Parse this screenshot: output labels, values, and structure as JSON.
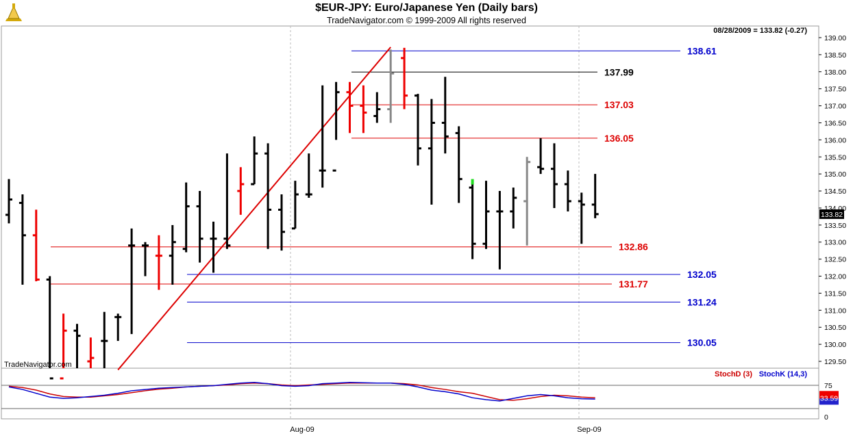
{
  "header": {
    "title": "$EUR-JPY:  Euro/Japanese Yen  (Daily bars)",
    "subtitle": "TradeNavigator.com © 1999-2009 All rights reserved",
    "last_quote": "08/28/2009 = 133.82 (-0.27)",
    "watermark": "TradeNavigator.com"
  },
  "chart_data": [
    {
      "type": "ohlc",
      "price_axis": {
        "ticks": [
          "139.00",
          "138.50",
          "138.00",
          "137.50",
          "137.00",
          "136.50",
          "136.00",
          "135.50",
          "135.00",
          "134.50",
          "134.00",
          "133.50",
          "133.00",
          "132.50",
          "132.00",
          "131.50",
          "131.00",
          "130.50",
          "130.00",
          "129.50"
        ],
        "range": [
          129.2,
          139.3
        ]
      },
      "x_axis": {
        "ticks": [
          "Aug-09",
          "Sep-09"
        ]
      },
      "current_price_label": "133.82",
      "bars": [
        {
          "o": 133.8,
          "h": 134.85,
          "l": 133.55,
          "c": 134.25,
          "color": "black"
        },
        {
          "o": 134.15,
          "h": 134.4,
          "l": 131.75,
          "c": 133.2,
          "color": "black"
        },
        {
          "o": 133.2,
          "h": 133.95,
          "l": 131.85,
          "c": 131.9,
          "color": "red"
        },
        {
          "o": 131.9,
          "h": 132.0,
          "l": 128.0,
          "c": 129.0,
          "color": "black"
        },
        {
          "o": 129.0,
          "h": 130.9,
          "l": 128.5,
          "c": 130.4,
          "color": "red"
        },
        {
          "o": 130.4,
          "h": 130.6,
          "l": 128.8,
          "c": 130.25,
          "color": "black"
        },
        {
          "o": 129.5,
          "h": 130.2,
          "l": 128.9,
          "c": 129.6,
          "color": "red"
        },
        {
          "o": 130.1,
          "h": 130.95,
          "l": 129.3,
          "c": 130.1,
          "color": "black"
        },
        {
          "o": 130.8,
          "h": 130.9,
          "l": 130.1,
          "c": 130.8,
          "color": "black"
        },
        {
          "o": 132.9,
          "h": 133.4,
          "l": 130.3,
          "c": 132.9,
          "color": "black"
        },
        {
          "o": 132.9,
          "h": 133.0,
          "l": 132.0,
          "c": 132.9,
          "color": "black"
        },
        {
          "o": 132.6,
          "h": 133.2,
          "l": 131.6,
          "c": 132.6,
          "color": "red"
        },
        {
          "o": 132.6,
          "h": 133.5,
          "l": 131.75,
          "c": 133.0,
          "color": "black"
        },
        {
          "o": 132.8,
          "h": 134.75,
          "l": 132.7,
          "c": 134.05,
          "color": "black"
        },
        {
          "o": 134.05,
          "h": 134.5,
          "l": 132.4,
          "c": 133.1,
          "color": "black"
        },
        {
          "o": 133.1,
          "h": 133.6,
          "l": 132.1,
          "c": 133.1,
          "color": "black"
        },
        {
          "o": 133.1,
          "h": 135.6,
          "l": 132.8,
          "c": 132.9,
          "color": "black"
        },
        {
          "o": 134.5,
          "h": 135.2,
          "l": 133.8,
          "c": 134.7,
          "color": "red"
        },
        {
          "o": 134.7,
          "h": 136.1,
          "l": 134.7,
          "c": 135.6,
          "color": "black"
        },
        {
          "o": 135.6,
          "h": 135.9,
          "l": 132.8,
          "c": 133.95,
          "color": "black"
        },
        {
          "o": 133.95,
          "h": 134.4,
          "l": 132.75,
          "c": 133.3,
          "color": "black"
        },
        {
          "o": 133.4,
          "h": 134.8,
          "l": 133.4,
          "c": 134.4,
          "color": "black"
        },
        {
          "o": 134.4,
          "h": 135.6,
          "l": 134.3,
          "c": 134.4,
          "color": "black"
        },
        {
          "o": 135.1,
          "h": 137.6,
          "l": 134.6,
          "c": 135.1,
          "color": "black"
        },
        {
          "o": 135.1,
          "h": 137.7,
          "l": 136.0,
          "c": 137.4,
          "color": "black"
        },
        {
          "o": 137.4,
          "h": 137.7,
          "l": 136.2,
          "c": 137.0,
          "color": "red"
        },
        {
          "o": 137.0,
          "h": 137.6,
          "l": 136.2,
          "c": 136.8,
          "color": "red"
        },
        {
          "o": 136.7,
          "h": 137.4,
          "l": 136.5,
          "c": 136.9,
          "color": "black"
        },
        {
          "o": 136.9,
          "h": 138.65,
          "l": 136.5,
          "c": 137.95,
          "color": "grey"
        },
        {
          "o": 138.4,
          "h": 138.7,
          "l": 136.9,
          "c": 137.3,
          "color": "red"
        },
        {
          "o": 137.3,
          "h": 137.35,
          "l": 135.25,
          "c": 135.75,
          "color": "black"
        },
        {
          "o": 135.75,
          "h": 137.2,
          "l": 134.1,
          "c": 136.5,
          "color": "black"
        },
        {
          "o": 136.5,
          "h": 137.85,
          "l": 135.6,
          "c": 136.1,
          "color": "black"
        },
        {
          "o": 136.2,
          "h": 136.4,
          "l": 134.15,
          "c": 134.85,
          "color": "black"
        },
        {
          "o": 134.6,
          "h": 134.8,
          "l": 132.5,
          "c": 132.95,
          "color": "black"
        },
        {
          "o": 132.95,
          "h": 134.8,
          "l": 132.8,
          "c": 133.9,
          "color": "black"
        },
        {
          "o": 133.9,
          "h": 134.5,
          "l": 132.2,
          "c": 133.9,
          "color": "black"
        },
        {
          "o": 133.9,
          "h": 134.6,
          "l": 133.4,
          "c": 134.3,
          "color": "black"
        },
        {
          "o": 134.2,
          "h": 135.5,
          "l": 132.9,
          "c": 135.35,
          "color": "grey"
        },
        {
          "o": 135.2,
          "h": 136.05,
          "l": 135.0,
          "c": 135.15,
          "color": "black"
        },
        {
          "o": 135.15,
          "h": 135.9,
          "l": 134.0,
          "c": 134.7,
          "color": "black"
        },
        {
          "o": 134.7,
          "h": 135.1,
          "l": 133.9,
          "c": 134.2,
          "color": "black"
        },
        {
          "o": 134.2,
          "h": 134.45,
          "l": 132.95,
          "c": 134.1,
          "color": "black"
        },
        {
          "o": 134.1,
          "h": 135.0,
          "l": 133.7,
          "c": 133.82,
          "color": "black"
        }
      ],
      "green_mark_bar": 34,
      "levels": [
        {
          "value": 138.61,
          "label": "138.61",
          "color": "#0000cc"
        },
        {
          "value": 137.99,
          "label": "137.99",
          "color": "#000000"
        },
        {
          "value": 137.03,
          "label": "137.03",
          "color": "#dd0000"
        },
        {
          "value": 136.05,
          "label": "136.05",
          "color": "#dd0000"
        },
        {
          "value": 132.86,
          "label": "132.86",
          "color": "#dd0000"
        },
        {
          "value": 132.05,
          "label": "132.05",
          "color": "#0000cc"
        },
        {
          "value": 131.77,
          "label": "131.77",
          "color": "#dd0000"
        },
        {
          "value": 131.24,
          "label": "131.24",
          "color": "#0000cc"
        },
        {
          "value": 130.05,
          "label": "130.05",
          "color": "#0000cc"
        }
      ],
      "trendline": {
        "from": {
          "bar": 8,
          "price": 129.25
        },
        "to": {
          "bar": 28,
          "price": 138.72
        },
        "color": "#dd0000"
      }
    },
    {
      "type": "line",
      "series": [
        {
          "name": "StochD (3)",
          "color": "#cc0000",
          "values": [
            72,
            68,
            60,
            48,
            40,
            38,
            38,
            42,
            46,
            52,
            58,
            63,
            66,
            70,
            72,
            74,
            76,
            80,
            82,
            80,
            76,
            74,
            76,
            78,
            80,
            82,
            82,
            82,
            82,
            80,
            76,
            68,
            62,
            55,
            50,
            40,
            30,
            28,
            33,
            40,
            44,
            42,
            38,
            36
          ]
        },
        {
          "name": "StochK (14,3)",
          "color": "#0000cc",
          "values": [
            70,
            62,
            50,
            38,
            34,
            36,
            40,
            44,
            50,
            58,
            62,
            66,
            68,
            70,
            72,
            74,
            78,
            82,
            84,
            80,
            74,
            72,
            74,
            80,
            82,
            84,
            83,
            82,
            82,
            78,
            70,
            60,
            55,
            48,
            36,
            30,
            26,
            34,
            42,
            46,
            42,
            36,
            33,
            32
          ]
        }
      ],
      "y_axis": {
        "ticks": [
          "75",
          "0"
        ],
        "range": [
          0,
          100
        ]
      },
      "last_value_label": "33.59"
    }
  ]
}
